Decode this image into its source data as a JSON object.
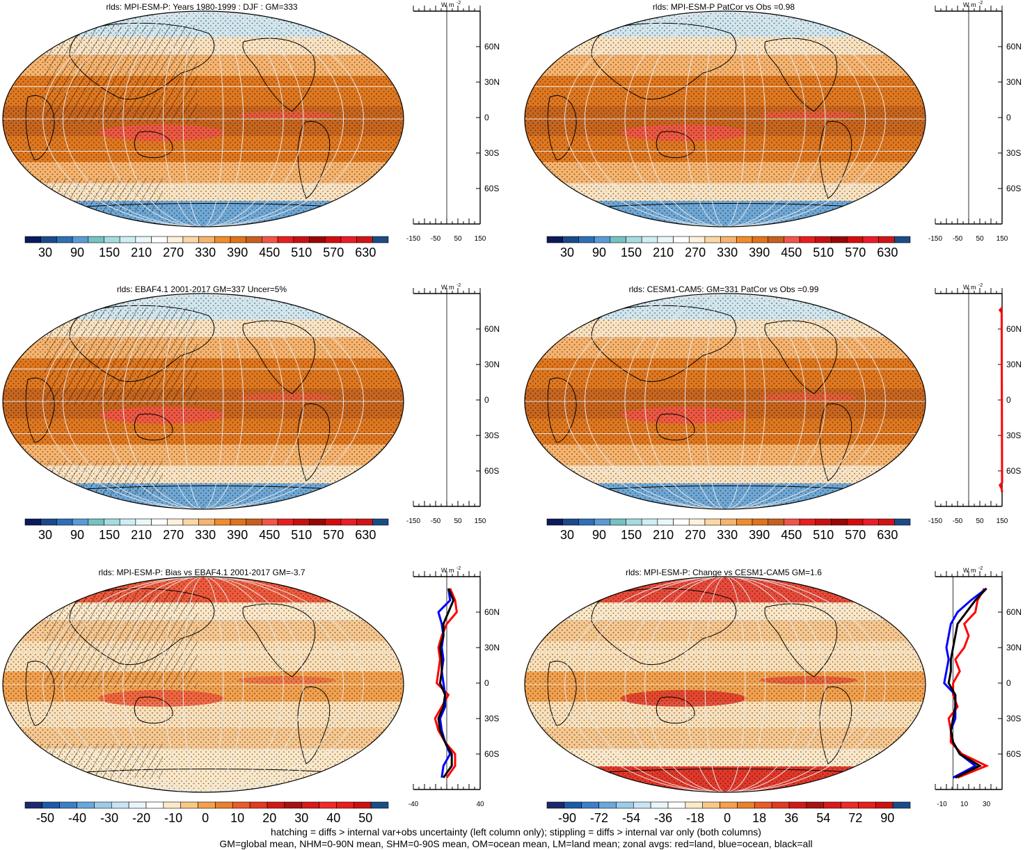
{
  "palettes": {
    "abs": [
      "#0a1a5c",
      "#1a4a8c",
      "#2f6fb8",
      "#5a9ad6",
      "#74c2c2",
      "#a6dce0",
      "#cdeef2",
      "#e9f7f9",
      "#ffffff",
      "#fdf0dc",
      "#fbd7a6",
      "#f7b46e",
      "#f08c2c",
      "#e1731a",
      "#c8601d",
      "#f25548",
      "#e81e1e",
      "#c81010",
      "#9c0505",
      "#d60c0c",
      "#ea1c28",
      "#d01416",
      "#1b4c86"
    ],
    "diff": [
      "#1a2a6c",
      "#1f5aa8",
      "#3c7fc8",
      "#6aa8dc",
      "#9ccbe8",
      "#c8e4f4",
      "#e8f4fa",
      "#ffffff",
      "#fde9c8",
      "#f9c787",
      "#f3a14e",
      "#e9802c",
      "#ea5c2a",
      "#e23a22",
      "#d11818",
      "#a81212",
      "#d81a1a",
      "#ef2a2a",
      "#e81e1e",
      "#cc1010",
      "#1a4c8a"
    ]
  },
  "colorbars": {
    "abs": [
      "30",
      "90",
      "150",
      "210",
      "270",
      "330",
      "390",
      "450",
      "510",
      "570",
      "630"
    ],
    "bias": [
      "-50",
      "-40",
      "-30",
      "-20",
      "-10",
      "0",
      "10",
      "20",
      "30",
      "40",
      "50"
    ],
    "change": [
      "-90",
      "-72",
      "-54",
      "-36",
      "-18",
      "0",
      "18",
      "36",
      "54",
      "72",
      "90"
    ]
  },
  "panels": [
    {
      "title": "rlds: MPI-ESM-P: Years 1980-1999 : DJF : GM=333",
      "colorbar": "abs",
      "map_style": "abs",
      "hatch": true,
      "lat_labels": [
        "60N",
        "30N",
        "0",
        "30S",
        "60S"
      ],
      "zonal_unit": "W m",
      "zonal_ticks": [
        "-150",
        "-50",
        "50",
        "150"
      ]
    },
    {
      "title": "rlds: MPI-ESM-P PatCor vs Obs =0.98",
      "colorbar": "abs",
      "map_style": "abs",
      "hatch": false,
      "lat_labels": [
        "60N",
        "30N",
        "0",
        "30S",
        "60S"
      ],
      "zonal_unit": "W m",
      "zonal_ticks": [
        "-150",
        "-50",
        "50",
        "150"
      ]
    },
    {
      "title": "rlds: EBAF4.1 2001-2017 GM=337 Uncer=5%",
      "colorbar": "abs",
      "map_style": "abs",
      "hatch": true,
      "lat_labels": [
        "60N",
        "30N",
        "0",
        "30S",
        "60S"
      ],
      "zonal_unit": "W m",
      "zonal_ticks": [
        "-150",
        "-50",
        "50",
        "150"
      ]
    },
    {
      "title": "rlds: CESM1-CAM5: GM=331 PatCor vs Obs =0.99",
      "colorbar": "abs",
      "map_style": "abs",
      "hatch": false,
      "lat_labels": [
        "60N",
        "30N",
        "0",
        "30S",
        "60S"
      ],
      "zonal_unit": "W m",
      "zonal_ticks": [
        "-150",
        "-50",
        "50",
        "150"
      ]
    },
    {
      "title": "rlds: MPI-ESM-P: Bias vs EBAF4.1 2001-2017 GM=-3.7",
      "colorbar": "bias",
      "map_style": "bias",
      "hatch": true,
      "lat_labels": [
        "60N",
        "30N",
        "0",
        "30S",
        "60S"
      ],
      "zonal_unit": "W m",
      "zonal_ticks": [
        "-40",
        "40"
      ]
    },
    {
      "title": "rlds: MPI-ESM-P: Change vs CESM1-CAM5 GM=1.6",
      "colorbar": "change",
      "map_style": "change",
      "hatch": false,
      "lat_labels": [
        "60N",
        "30N",
        "0",
        "30S",
        "60S"
      ],
      "zonal_unit": "W m",
      "zonal_ticks": [
        "-10",
        "10",
        "30"
      ]
    }
  ],
  "chart_data": [
    {
      "type": "line",
      "panel": "bias zonal average",
      "ylim_lat": [
        -90,
        90
      ],
      "xlim": [
        -40,
        40
      ],
      "series": [
        {
          "color": "#ff0000",
          "lat": [
            80,
            70,
            60,
            50,
            40,
            30,
            20,
            10,
            0,
            -10,
            -20,
            -30,
            -40,
            -50,
            -60,
            -70,
            -80
          ],
          "values": [
            4,
            10,
            12,
            0,
            -6,
            -10,
            -8,
            -10,
            -12,
            2,
            -6,
            -14,
            -10,
            -2,
            10,
            10,
            0
          ]
        },
        {
          "color": "#0000ff",
          "lat": [
            80,
            70,
            60,
            50,
            40,
            30,
            20,
            10,
            0,
            -10,
            -20,
            -30,
            -40,
            -50,
            -60,
            -70,
            -80
          ],
          "values": [
            2,
            4,
            -10,
            -6,
            -4,
            -6,
            -4,
            -6,
            -4,
            -2,
            -2,
            -8,
            -6,
            -2,
            4,
            -4,
            -6
          ]
        },
        {
          "color": "#000000",
          "lat": [
            80,
            70,
            60,
            50,
            40,
            30,
            20,
            10,
            0,
            -10,
            -20,
            -30,
            -40,
            -50,
            -60,
            -70,
            -80
          ],
          "values": [
            2,
            8,
            2,
            -4,
            -4,
            -8,
            -6,
            -6,
            -8,
            -2,
            -4,
            -10,
            -8,
            -2,
            6,
            6,
            -4
          ]
        }
      ]
    },
    {
      "type": "line",
      "panel": "change zonal average",
      "ylim_lat": [
        -90,
        90
      ],
      "xlim": [
        -16,
        44
      ],
      "series": [
        {
          "color": "#ff0000",
          "lat": [
            80,
            70,
            60,
            50,
            40,
            30,
            20,
            10,
            0,
            -10,
            -20,
            -30,
            -40,
            -50,
            -60,
            -70,
            -80
          ],
          "values": [
            28,
            22,
            20,
            10,
            14,
            10,
            2,
            6,
            0,
            0,
            4,
            -4,
            -2,
            -2,
            8,
            30,
            4
          ]
        },
        {
          "color": "#0000ff",
          "lat": [
            80,
            70,
            60,
            50,
            40,
            30,
            20,
            10,
            0,
            -10,
            -20,
            -30,
            -40,
            -50,
            -60,
            -70,
            -80
          ],
          "values": [
            30,
            16,
            4,
            -2,
            -4,
            -6,
            -4,
            -6,
            -8,
            2,
            2,
            2,
            -2,
            0,
            6,
            20,
            0
          ]
        },
        {
          "color": "#000000",
          "lat": [
            80,
            70,
            60,
            50,
            40,
            30,
            20,
            10,
            0,
            -10,
            -20,
            -30,
            -40,
            -50,
            -60,
            -70,
            -80
          ],
          "values": [
            30,
            20,
            12,
            4,
            2,
            0,
            -2,
            -2,
            -4,
            2,
            2,
            0,
            -2,
            0,
            6,
            24,
            2
          ]
        }
      ]
    },
    {
      "type": "line",
      "panel": "CESM1-CAM5 zonal average",
      "ylim_lat": [
        -90,
        90
      ],
      "xlim": [
        -150,
        150
      ],
      "series": [
        {
          "color": "#ff0000",
          "lat": [
            78,
            76,
            74,
            -70,
            -72,
            -75,
            -78
          ],
          "values": [
            150,
            140,
            148,
            150,
            140,
            148,
            150
          ]
        }
      ]
    }
  ],
  "footer": {
    "line1": "hatching = diffs > internal var+obs uncertainty (left column only); stippling = diffs > internal var only (both columns)",
    "line2": "GM=global mean, NHM=0-90N mean, SHM=0-90S mean, OM=ocean mean, LM=land mean; zonal avgs: red=land, blue=ocean, black=all"
  }
}
